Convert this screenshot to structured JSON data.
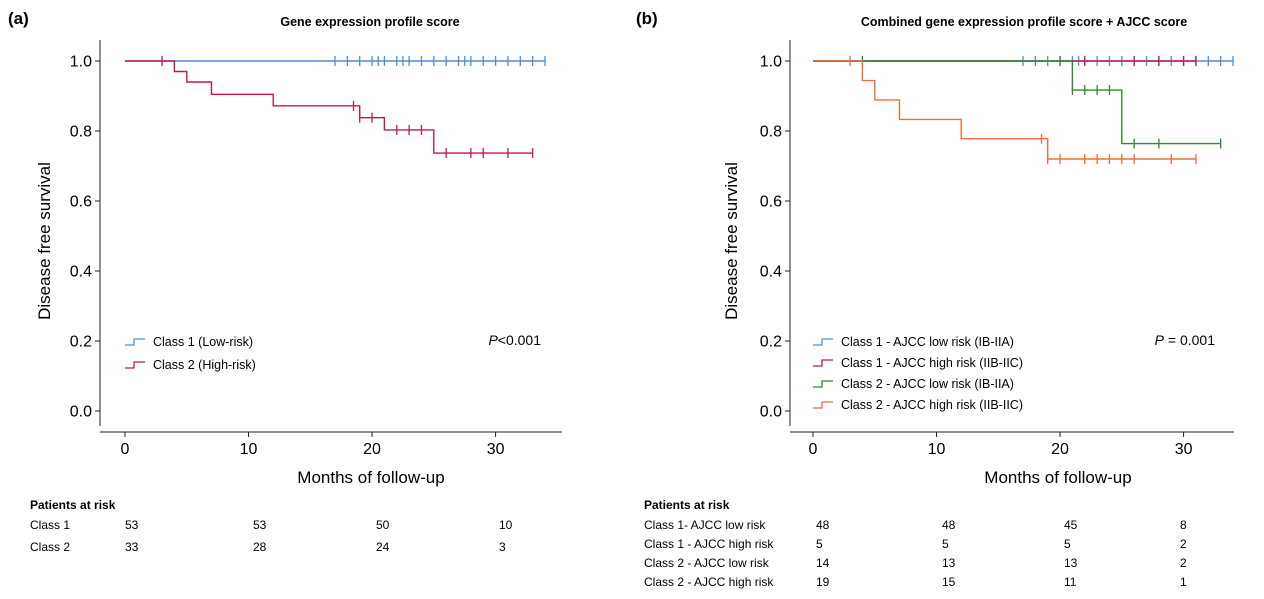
{
  "chart_data": [
    {
      "type": "line",
      "panel": "(a)",
      "title": "Gene expression profile score",
      "xlabel": "Months of follow-up",
      "ylabel": "Disease free survival",
      "xlim": [
        0,
        34
      ],
      "ylim": [
        0,
        1
      ],
      "x_ticks": [
        "0",
        "10",
        "20",
        "30"
      ],
      "y_ticks": [
        "0.0",
        "0.2",
        "0.4",
        "0.6",
        "0.8",
        "1.0"
      ],
      "grid": false,
      "legend_position": "bottom-left",
      "p_value": {
        "label": "P",
        "text": "<0.001"
      },
      "series": [
        {
          "name": "Class 1 (Low-risk)",
          "color": "#4a90d9",
          "steps": [
            [
              0,
              1.0
            ],
            [
              34,
              1.0
            ]
          ],
          "censored": [
            17,
            18,
            19,
            20,
            20.5,
            21,
            22,
            22.5,
            23,
            24,
            25,
            26,
            27,
            27.5,
            28,
            29,
            30,
            31,
            32,
            33,
            34
          ]
        },
        {
          "name": "Class 2 (High-risk)",
          "color": "#c8174f",
          "steps": [
            [
              0,
              1.0
            ],
            [
              4,
              1.0
            ],
            [
              4,
              0.97
            ],
            [
              5,
              0.97
            ],
            [
              5,
              0.94
            ],
            [
              7,
              0.94
            ],
            [
              7,
              0.905
            ],
            [
              12,
              0.905
            ],
            [
              12,
              0.872
            ],
            [
              19,
              0.872
            ],
            [
              19,
              0.838
            ],
            [
              21,
              0.838
            ],
            [
              21,
              0.803
            ],
            [
              25,
              0.803
            ],
            [
              25,
              0.737
            ],
            [
              33,
              0.737
            ]
          ],
          "censored": [
            [
              3,
              1.0
            ],
            [
              18.5,
              0.872
            ],
            [
              19,
              0.838
            ],
            [
              20,
              0.838
            ],
            [
              22,
              0.803
            ],
            [
              23,
              0.803
            ],
            [
              24,
              0.803
            ],
            [
              26,
              0.737
            ],
            [
              28,
              0.737
            ],
            [
              29,
              0.737
            ],
            [
              31,
              0.737
            ],
            [
              33,
              0.737
            ]
          ]
        }
      ],
      "risk_table": {
        "heading": "Patients at risk",
        "rows": [
          {
            "label": "Class 1",
            "values": [
              "53",
              "53",
              "50",
              "10"
            ]
          },
          {
            "label": "Class 2",
            "values": [
              "33",
              "28",
              "24",
              "3"
            ]
          }
        ]
      }
    },
    {
      "type": "line",
      "panel": "(b)",
      "title": "Combined gene expression profile score + AJCC score",
      "xlabel": "Months of follow-up",
      "ylabel": "Disease free survival",
      "xlim": [
        0,
        34
      ],
      "ylim": [
        0,
        1
      ],
      "x_ticks": [
        "0",
        "10",
        "20",
        "30"
      ],
      "y_ticks": [
        "0.0",
        "0.2",
        "0.4",
        "0.6",
        "0.8",
        "1.0"
      ],
      "grid": false,
      "legend_position": "bottom-left",
      "p_value": {
        "label": "P",
        "text": " = 0.001"
      },
      "series": [
        {
          "name": "Class 1 - AJCC low risk (IB-IIA)",
          "color": "#4a90d9",
          "steps": [
            [
              0,
              1.0
            ],
            [
              34,
              1.0
            ]
          ],
          "censored": [
            17,
            18,
            19,
            20,
            21,
            21.5,
            22,
            23,
            24,
            25,
            26,
            27,
            28,
            29,
            30,
            31,
            32,
            33,
            34
          ]
        },
        {
          "name": "Class 1 - AJCC high risk (IIB-IIC)",
          "color": "#c8174f",
          "steps": [
            [
              0,
              1.0
            ],
            [
              31,
              1.0
            ]
          ],
          "censored": [
            22,
            26,
            28,
            30,
            31
          ]
        },
        {
          "name": "Class 2 - AJCC low risk (IB-IIA)",
          "color": "#2e8b2e",
          "steps": [
            [
              0,
              1.0
            ],
            [
              21,
              1.0
            ],
            [
              21,
              0.917
            ],
            [
              25,
              0.917
            ],
            [
              25,
              0.764
            ],
            [
              33,
              0.764
            ]
          ],
          "censored": [
            [
              4,
              1.0
            ],
            [
              20,
              1.0
            ],
            [
              21,
              0.917
            ],
            [
              22,
              0.917
            ],
            [
              23,
              0.917
            ],
            [
              24,
              0.917
            ],
            [
              26,
              0.764
            ],
            [
              28,
              0.764
            ],
            [
              33,
              0.764
            ]
          ]
        },
        {
          "name": "Class 2 - AJCC high risk (IIB-IIC)",
          "color": "#f26b3a",
          "steps": [
            [
              0,
              1.0
            ],
            [
              4,
              1.0
            ],
            [
              4,
              0.944
            ],
            [
              5,
              0.944
            ],
            [
              5,
              0.889
            ],
            [
              7,
              0.889
            ],
            [
              7,
              0.833
            ],
            [
              12,
              0.833
            ],
            [
              12,
              0.778
            ],
            [
              19,
              0.778
            ],
            [
              19,
              0.72
            ],
            [
              31,
              0.72
            ]
          ],
          "censored": [
            [
              3,
              1.0
            ],
            [
              18.5,
              0.778
            ],
            [
              19,
              0.72
            ],
            [
              20,
              0.72
            ],
            [
              22,
              0.72
            ],
            [
              23,
              0.72
            ],
            [
              24,
              0.72
            ],
            [
              25,
              0.72
            ],
            [
              26,
              0.72
            ],
            [
              29,
              0.72
            ],
            [
              31,
              0.72
            ]
          ]
        }
      ],
      "risk_table": {
        "heading": "Patients at risk",
        "rows": [
          {
            "label": "Class 1- AJCC low risk",
            "values": [
              "48",
              "48",
              "45",
              "8"
            ]
          },
          {
            "label": "Class 1 - AJCC high risk",
            "values": [
              "5",
              "5",
              "5",
              "2"
            ]
          },
          {
            "label": "Class 2 - AJCC low risk",
            "values": [
              "14",
              "13",
              "13",
              "2"
            ]
          },
          {
            "label": "Class 2 - AJCC high risk",
            "values": [
              "19",
              "15",
              "11",
              "1"
            ]
          }
        ]
      }
    }
  ]
}
